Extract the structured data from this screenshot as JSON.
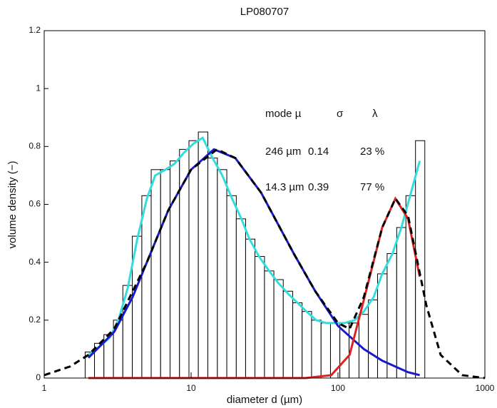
{
  "chart_data": {
    "type": "histogram",
    "title": "LP080707",
    "xlabel": "diameter d (µm)",
    "ylabel": "volume density (−)",
    "xscale": "log",
    "xlim": [
      1,
      1000
    ],
    "xticks": [
      1,
      10,
      100,
      1000
    ],
    "ylim": [
      0,
      1.2
    ],
    "yticks": [
      0,
      0.2,
      0.4,
      0.6,
      0.8,
      1,
      1.2
    ],
    "bar_color": "#ffffff",
    "bar_edge": "#000000",
    "bins": [
      1.9,
      2.2,
      2.55,
      2.96,
      3.43,
      3.98,
      4.62,
      5.35,
      6.2,
      7.19,
      8.34,
      9.67,
      11.2,
      13.0,
      15.1,
      17.5,
      20.3,
      23.5,
      27.2,
      31.6,
      36.6,
      42.4,
      49.2,
      57.0,
      66.1,
      76.7,
      88.9,
      103,
      119,
      139,
      161,
      186,
      216,
      251,
      290,
      337,
      390
    ],
    "values": [
      0.09,
      0.12,
      0.15,
      0.2,
      0.32,
      0.49,
      0.63,
      0.72,
      0.72,
      0.75,
      0.79,
      0.82,
      0.85,
      0.76,
      0.72,
      0.63,
      0.55,
      0.48,
      0.42,
      0.37,
      0.34,
      0.3,
      0.26,
      0.23,
      0.2,
      0.19,
      0.19,
      0.19,
      0.19,
      0.22,
      0.27,
      0.36,
      0.43,
      0.52,
      0.63,
      0.82
    ],
    "curves": [
      {
        "color": "#33dddd",
        "dashed": false,
        "x": [
          2,
          2.4,
          2.8,
          3.2,
          3.7,
          4.3,
          5,
          5.7,
          6.7,
          7.7,
          9,
          10.4,
          12,
          14,
          16.3,
          19,
          22,
          25,
          29,
          34,
          39,
          46,
          53,
          61,
          71,
          83,
          96,
          110,
          130,
          150,
          175,
          200,
          235,
          270,
          310,
          360
        ],
        "values": [
          0.08,
          0.11,
          0.14,
          0.2,
          0.31,
          0.48,
          0.62,
          0.7,
          0.72,
          0.74,
          0.78,
          0.81,
          0.83,
          0.76,
          0.7,
          0.62,
          0.55,
          0.48,
          0.42,
          0.37,
          0.33,
          0.29,
          0.26,
          0.23,
          0.2,
          0.19,
          0.19,
          0.19,
          0.2,
          0.23,
          0.28,
          0.36,
          0.43,
          0.52,
          0.63,
          0.75
        ]
      },
      {
        "color": "#1a1acc",
        "dashed": false,
        "x": [
          2,
          3,
          4,
          5,
          7,
          10,
          14.3,
          20,
          30,
          50,
          70,
          100,
          150,
          200,
          300,
          360
        ],
        "values": [
          0.07,
          0.16,
          0.28,
          0.4,
          0.58,
          0.72,
          0.79,
          0.76,
          0.64,
          0.43,
          0.3,
          0.18,
          0.1,
          0.06,
          0.02,
          0.01
        ]
      },
      {
        "color": "#dd2222",
        "dashed": false,
        "x": [
          2,
          60,
          90,
          120,
          150,
          200,
          246,
          300,
          360
        ],
        "values": [
          0,
          0,
          0.01,
          0.08,
          0.27,
          0.52,
          0.62,
          0.55,
          0.35
        ]
      },
      {
        "color": "#000000",
        "dashed": true,
        "x": [
          1,
          1.5,
          2,
          3,
          5,
          7,
          10,
          15,
          20,
          30,
          50,
          70,
          100,
          120,
          150,
          200,
          246,
          300,
          400,
          500,
          700,
          1000
        ],
        "values": [
          0.01,
          0.04,
          0.08,
          0.17,
          0.4,
          0.58,
          0.72,
          0.79,
          0.76,
          0.64,
          0.43,
          0.3,
          0.19,
          0.17,
          0.28,
          0.52,
          0.62,
          0.56,
          0.25,
          0.08,
          0.01,
          0
        ]
      }
    ],
    "annotations": [
      [
        "mode µ",
        "σ",
        "λ"
      ],
      [
        "246 µm",
        "0.14",
        "23 %"
      ],
      [
        "14.3 µm",
        "0.39",
        "77 %"
      ]
    ]
  }
}
